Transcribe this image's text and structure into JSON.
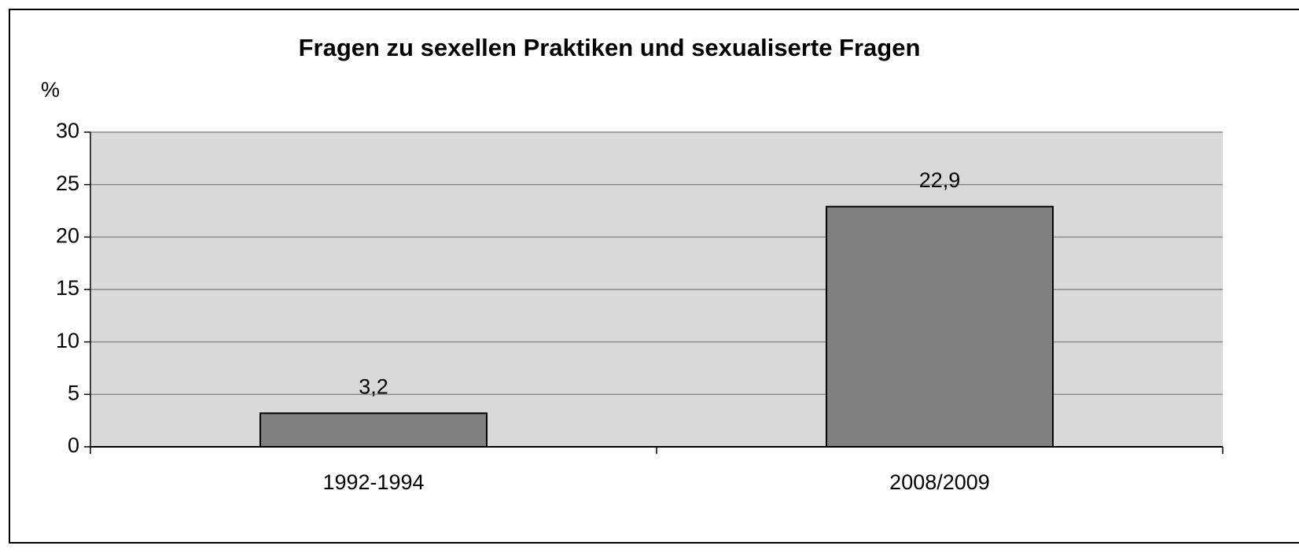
{
  "chart_data": {
    "type": "bar",
    "title": "Fragen zu sexellen Praktiken und sexualiserte Fragen",
    "ylabel": "%",
    "categories": [
      "1992-1994",
      "2008/2009"
    ],
    "values": [
      3.2,
      22.9
    ],
    "value_labels": [
      "3,2",
      "22,9"
    ],
    "color": "#808080",
    "ylim": [
      0,
      30
    ],
    "yticks": [
      0,
      5,
      10,
      15,
      20,
      25,
      30
    ],
    "grid": true
  }
}
